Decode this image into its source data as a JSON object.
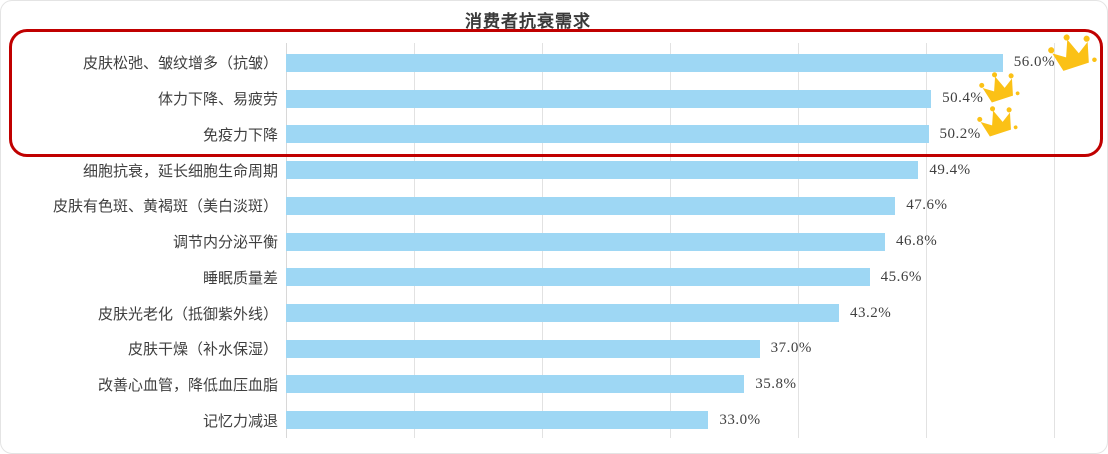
{
  "chart_data": {
    "type": "bar",
    "orientation": "horizontal",
    "title": "消费者抗衰需求",
    "categories": [
      "皮肤松弛、皱纹增多（抗皱）",
      "体力下降、易疲劳",
      "免疫力下降",
      "细胞抗衰，延长细胞生命周期",
      "皮肤有色斑、黄褐斑（美白淡斑）",
      "调节内分泌平衡",
      "睡眠质量差",
      "皮肤光老化（抵御紫外线）",
      "皮肤干燥（补水保湿）",
      "改善心血管，降低血压血脂",
      "记忆力减退"
    ],
    "values": [
      56.0,
      50.4,
      50.2,
      49.4,
      47.6,
      46.8,
      45.6,
      43.2,
      37.0,
      35.8,
      33.0
    ],
    "value_labels": [
      "56.0%",
      "50.4%",
      "50.2%",
      "49.4%",
      "47.6%",
      "46.8%",
      "45.6%",
      "43.2%",
      "37.0%",
      "35.8%",
      "33.0%"
    ],
    "xlabel": "",
    "ylabel": "",
    "xlim": [
      0,
      60
    ],
    "gridline_step": 10,
    "grid": true,
    "legend": false,
    "colors": {
      "bar": "#9ed7f4",
      "highlight_box": "#c00000",
      "crown": "#fbc116",
      "text": "#3f3f3f"
    },
    "annotations": {
      "highlighted_rows": [
        "皮肤松弛、皱纹增多（抗皱）",
        "体力下降、易疲劳",
        "免疫力下降"
      ],
      "crown_count": 3
    }
  }
}
